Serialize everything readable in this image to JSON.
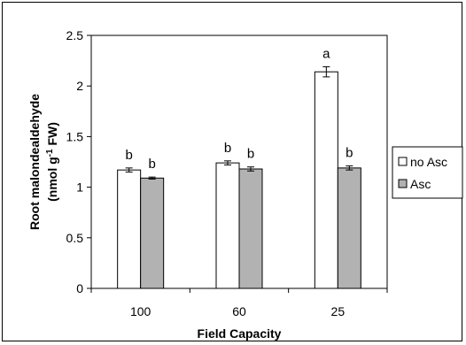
{
  "chart_data": {
    "type": "bar",
    "title": "",
    "xlabel": "Field Capacity",
    "ylabel_line1": "Root malondealdehyde",
    "ylabel_line2_pre": "(nmol g",
    "ylabel_line2_sup": "-1",
    "ylabel_line2_post": " FW)",
    "categories": [
      "100",
      "60",
      "25"
    ],
    "ylim": [
      0,
      2.5
    ],
    "yticks": [
      0,
      0.5,
      1,
      1.5,
      2,
      2.5
    ],
    "ytick_labels": [
      "0",
      "0.5",
      "1",
      "1.5",
      "2",
      "2.5"
    ],
    "grid": false,
    "legend_position": "right",
    "series": [
      {
        "name": "no Asc",
        "color": "#ffffff",
        "values": [
          1.17,
          1.24,
          2.14
        ],
        "errors": [
          0.02,
          0.02,
          0.05
        ],
        "letters": [
          "b",
          "b",
          "a"
        ]
      },
      {
        "name": "Asc",
        "color": "#b2b2b2",
        "values": [
          1.09,
          1.18,
          1.19
        ],
        "errors": [
          0.01,
          0.02,
          0.02
        ],
        "letters": [
          "b",
          "b",
          "b"
        ]
      }
    ]
  }
}
